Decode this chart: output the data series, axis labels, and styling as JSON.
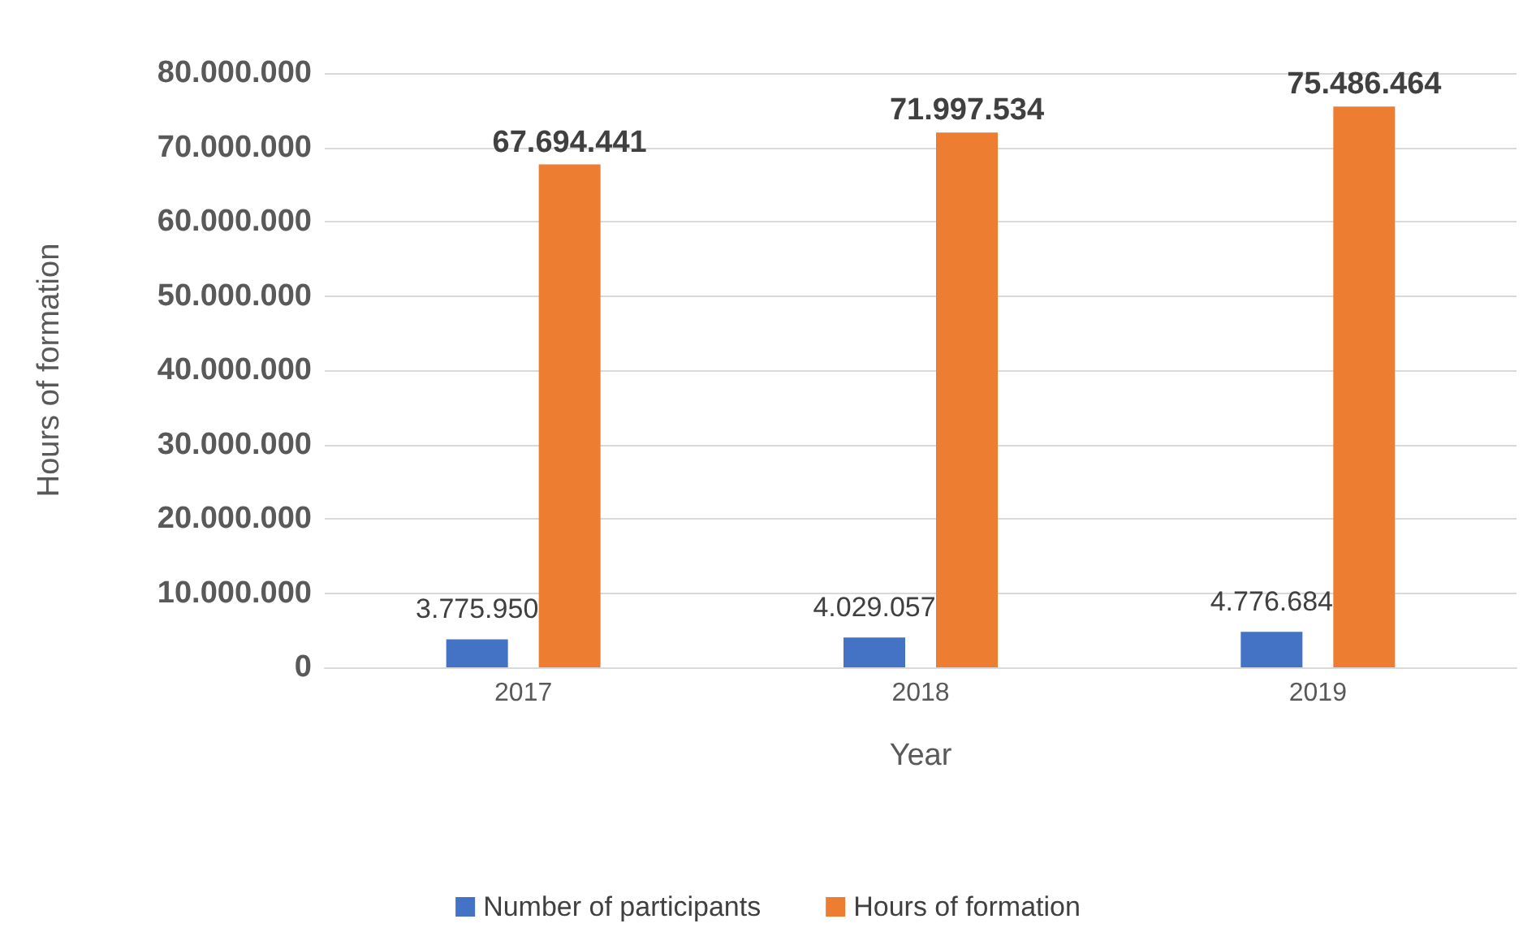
{
  "chart_data": {
    "type": "bar",
    "xlabel": "Year",
    "ylabel": "Hours of formation",
    "categories": [
      "2017",
      "2018",
      "2019"
    ],
    "series": [
      {
        "name": "Number of participants",
        "color": "#4472c4",
        "values": [
          3775950,
          4029057,
          4776684
        ],
        "value_labels": [
          "3.775.950",
          "4.029.057",
          "4.776.684"
        ]
      },
      {
        "name": "Hours of formation",
        "color": "#ed7d31",
        "values": [
          67694441,
          71997534,
          75486464
        ],
        "value_labels": [
          "67.694.441",
          "71.997.534",
          "75.486.464"
        ]
      }
    ],
    "ylim": [
      0,
      80000000
    ],
    "yticks": [
      {
        "value": 0,
        "label": "0"
      },
      {
        "value": 10000000,
        "label": "10.000.000"
      },
      {
        "value": 20000000,
        "label": "20.000.000"
      },
      {
        "value": 30000000,
        "label": "30.000.000"
      },
      {
        "value": 40000000,
        "label": "40.000.000"
      },
      {
        "value": 50000000,
        "label": "50.000.000"
      },
      {
        "value": 60000000,
        "label": "60.000.000"
      },
      {
        "value": 70000000,
        "label": "70.000.000"
      },
      {
        "value": 80000000,
        "label": "80.000.000"
      }
    ],
    "grid": "y",
    "legend": "bottom"
  }
}
